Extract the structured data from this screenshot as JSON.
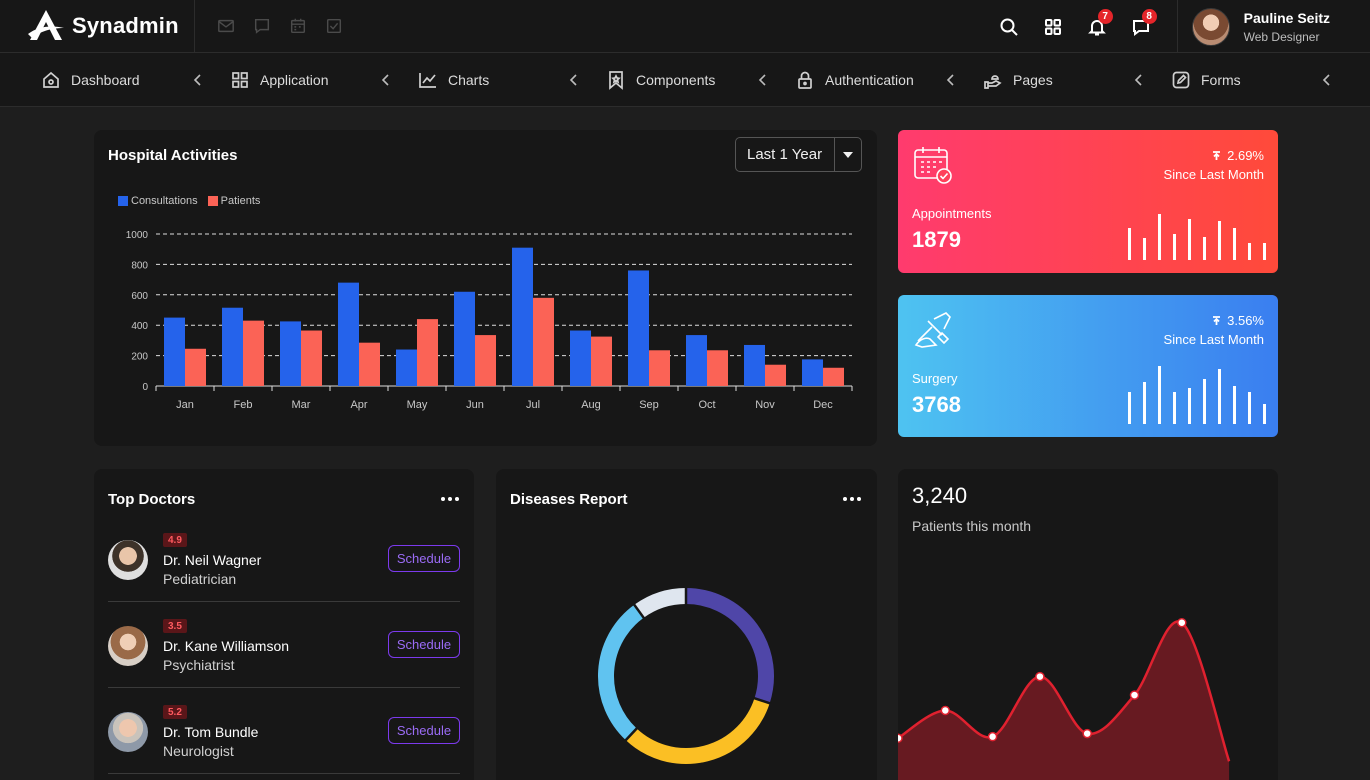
{
  "app": {
    "name": "Synadmin"
  },
  "header": {
    "quick_icons": [
      "mail-icon",
      "chat-icon",
      "calendar-icon",
      "checkbox-icon"
    ],
    "notifications_count": "7",
    "messages_count": "8",
    "user": {
      "name": "Pauline Seitz",
      "role": "Web Designer"
    }
  },
  "nav": {
    "items": [
      {
        "label": "Dashboard",
        "icon": "home-icon"
      },
      {
        "label": "Application",
        "icon": "grid-icon"
      },
      {
        "label": "Charts",
        "icon": "chart-line-icon"
      },
      {
        "label": "Components",
        "icon": "bookmark-icon"
      },
      {
        "label": "Authentication",
        "icon": "lock-icon"
      },
      {
        "label": "Pages",
        "icon": "hand-icon"
      },
      {
        "label": "Forms",
        "icon": "edit-icon"
      }
    ]
  },
  "hospital": {
    "title": "Hospital Activities",
    "period": "Last 1 Year"
  },
  "chart_data": [
    {
      "type": "bar",
      "title": "Hospital Activities",
      "categories": [
        "Jan",
        "Feb",
        "Mar",
        "Apr",
        "May",
        "Jun",
        "Jul",
        "Aug",
        "Sep",
        "Oct",
        "Nov",
        "Dec"
      ],
      "series": [
        {
          "name": "Consultations",
          "color": "#2563eb",
          "values": [
            450,
            515,
            425,
            680,
            240,
            620,
            910,
            365,
            760,
            335,
            270,
            175
          ]
        },
        {
          "name": "Patients",
          "color": "#fb6356",
          "values": [
            245,
            430,
            365,
            285,
            440,
            335,
            580,
            325,
            235,
            235,
            140,
            120
          ]
        }
      ],
      "ylim": [
        0,
        1000
      ],
      "yticks": [
        "0",
        "200",
        "400",
        "600",
        "800",
        "1000"
      ],
      "grid": true,
      "legend": "top-left"
    },
    {
      "type": "pie",
      "title": "Diseases Report",
      "values": [
        30,
        32,
        28,
        10
      ],
      "colors": [
        "#4f46a8",
        "#fbbf24",
        "#60c3f0",
        "#dfe6ef"
      ]
    },
    {
      "type": "area",
      "values": [
        20,
        38,
        21,
        60,
        23,
        48,
        95,
        5
      ],
      "color": "#e0212f"
    }
  ],
  "stats": [
    {
      "label": "Appointments",
      "value": "1879",
      "change": "2.69%",
      "since": "Since Last Month",
      "icon": "calendar-check-icon",
      "bars": [
        0.55,
        0.38,
        0.8,
        0.45,
        0.7,
        0.4,
        0.68,
        0.55,
        0.3,
        0.3
      ]
    },
    {
      "label": "Surgery",
      "value": "3768",
      "change": "3.56%",
      "since": "Since Last Month",
      "icon": "surgery-icon",
      "bars": [
        0.55,
        0.72,
        1.0,
        0.55,
        0.62,
        0.78,
        0.95,
        0.65,
        0.55,
        0.35
      ]
    }
  ],
  "doctors": {
    "title": "Top Doctors",
    "button_label": "Schedule",
    "list": [
      {
        "rating": "4.9",
        "name": "Dr. Neil Wagner",
        "specialty": "Pediatrician"
      },
      {
        "rating": "3.5",
        "name": "Dr. Kane Williamson",
        "specialty": "Psychiatrist"
      },
      {
        "rating": "5.2",
        "name": "Dr. Tom Bundle",
        "specialty": "Neurologist"
      }
    ]
  },
  "diseases": {
    "title": "Diseases Report"
  },
  "patients": {
    "value": "3,240",
    "label": "Patients this month"
  }
}
